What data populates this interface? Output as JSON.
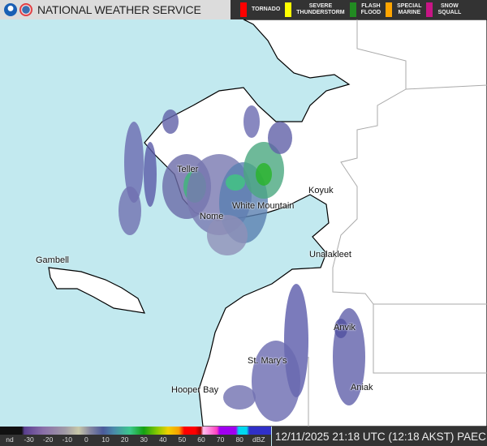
{
  "header": {
    "title": "NATIONAL WEATHER SERVICE",
    "logos": [
      "noaa-logo",
      "nws-logo"
    ]
  },
  "warnings_legend": [
    {
      "label_1": "",
      "label_2": "TORNADO",
      "color": "#ff0000"
    },
    {
      "label_1": "SEVERE",
      "label_2": "THUNDERSTORM",
      "color": "#ffff00"
    },
    {
      "label_1": "FLASH",
      "label_2": "FLOOD",
      "color": "#228b22"
    },
    {
      "label_1": "SPECIAL",
      "label_2": "MARINE",
      "color": "#ffa500"
    },
    {
      "label_1": "SNOW",
      "label_2": "SQUALL",
      "color": "#c71585"
    }
  ],
  "cities": [
    "Teller",
    "Koyuk",
    "White Mountain",
    "Nome",
    "Unalakleet",
    "Gambell",
    "Anvik",
    "St. Mary's",
    "Hooper Bay",
    "Aniak"
  ],
  "scale": {
    "labels": [
      "nd",
      "-30",
      "-20",
      "-10",
      "0",
      "10",
      "20",
      "30",
      "40",
      "50",
      "60",
      "70",
      "80",
      "dBZ"
    ]
  },
  "timestamp": "12/11/2025 21:18 UTC (12:18 AKST) PAEC",
  "colors": {
    "water": "#c2e9ef",
    "land": "#ffffff",
    "header_dark": "#333333"
  }
}
